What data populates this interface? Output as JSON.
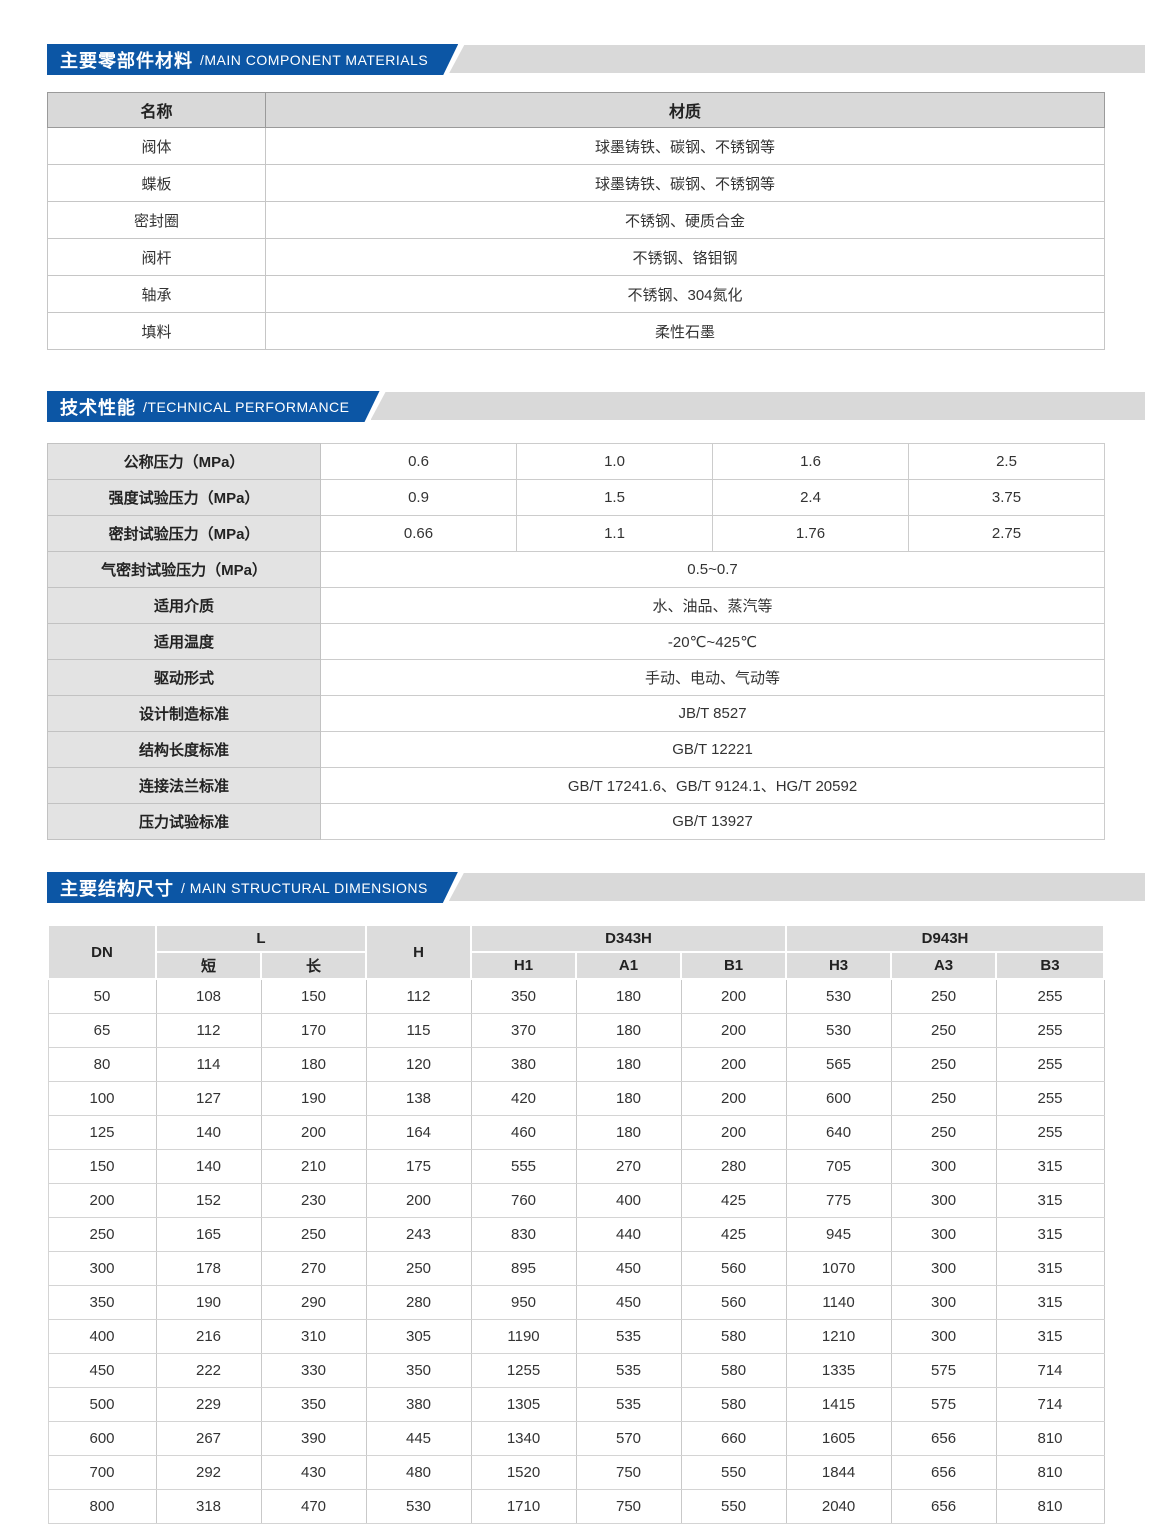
{
  "colors": {
    "accent_blue": "#0c56a5",
    "header_bar_gray": "#d9d9d9",
    "table_header_bg": "#d9d9d9",
    "label_cell_bg": "#e3e3e3",
    "dim_header_bg": "#dcdcdc"
  },
  "materials": {
    "title_zh": "主要零部件材料",
    "title_en": "/MAIN COMPONENT MATERIALS",
    "table": {
      "columns": [
        "名称",
        "材质"
      ],
      "rows": [
        [
          "阀体",
          "球墨铸铁、碳钢、不锈钢等"
        ],
        [
          "蝶板",
          "球墨铸铁、碳钢、不锈钢等"
        ],
        [
          "密封圈",
          "不锈钢、硬质合金"
        ],
        [
          "阀杆",
          "不锈钢、铬钼钢"
        ],
        [
          "轴承",
          "不锈钢、304氮化"
        ],
        [
          "填料",
          "柔性石墨"
        ]
      ]
    }
  },
  "technical": {
    "title_zh": "技术性能",
    "title_en": "/TECHNICAL PERFORMANCE",
    "table": {
      "rows": [
        {
          "label": "公称压力（MPa）",
          "values": [
            "0.6",
            "1.0",
            "1.6",
            "2.5"
          ]
        },
        {
          "label": "强度试验压力（MPa）",
          "values": [
            "0.9",
            "1.5",
            "2.4",
            "3.75"
          ]
        },
        {
          "label": "密封试验压力（MPa）",
          "values": [
            "0.66",
            "1.1",
            "1.76",
            "2.75"
          ]
        },
        {
          "label": "气密封试验压力（MPa）",
          "values": [
            "0.5~0.7"
          ]
        },
        {
          "label": "适用介质",
          "values": [
            "水、油品、蒸汽等"
          ]
        },
        {
          "label": "适用温度",
          "values": [
            "-20℃~425℃"
          ]
        },
        {
          "label": "驱动形式",
          "values": [
            "手动、电动、气动等"
          ]
        },
        {
          "label": "设计制造标准",
          "values": [
            "JB/T 8527"
          ]
        },
        {
          "label": "结构长度标准",
          "values": [
            "GB/T 12221"
          ]
        },
        {
          "label": "连接法兰标准",
          "values": [
            "GB/T 17241.6、GB/T 9124.1、HG/T 20592"
          ]
        },
        {
          "label": "压力试验标准",
          "values": [
            "GB/T 13927"
          ]
        }
      ]
    }
  },
  "dimensions": {
    "title_zh": "主要结构尺寸",
    "title_en": "/ MAIN STRUCTURAL DIMENSIONS",
    "table": {
      "header": {
        "dn": "DN",
        "l_group": "L",
        "l_short": "短",
        "l_long": "长",
        "h": "H",
        "d343h_group": "D343H",
        "d343h_cols": [
          "H1",
          "A1",
          "B1"
        ],
        "d943h_group": "D943H",
        "d943h_cols": [
          "H3",
          "A3",
          "B3"
        ]
      },
      "rows": [
        [
          "50",
          "108",
          "150",
          "112",
          "350",
          "180",
          "200",
          "530",
          "250",
          "255"
        ],
        [
          "65",
          "112",
          "170",
          "115",
          "370",
          "180",
          "200",
          "530",
          "250",
          "255"
        ],
        [
          "80",
          "114",
          "180",
          "120",
          "380",
          "180",
          "200",
          "565",
          "250",
          "255"
        ],
        [
          "100",
          "127",
          "190",
          "138",
          "420",
          "180",
          "200",
          "600",
          "250",
          "255"
        ],
        [
          "125",
          "140",
          "200",
          "164",
          "460",
          "180",
          "200",
          "640",
          "250",
          "255"
        ],
        [
          "150",
          "140",
          "210",
          "175",
          "555",
          "270",
          "280",
          "705",
          "300",
          "315"
        ],
        [
          "200",
          "152",
          "230",
          "200",
          "760",
          "400",
          "425",
          "775",
          "300",
          "315"
        ],
        [
          "250",
          "165",
          "250",
          "243",
          "830",
          "440",
          "425",
          "945",
          "300",
          "315"
        ],
        [
          "300",
          "178",
          "270",
          "250",
          "895",
          "450",
          "560",
          "1070",
          "300",
          "315"
        ],
        [
          "350",
          "190",
          "290",
          "280",
          "950",
          "450",
          "560",
          "1140",
          "300",
          "315"
        ],
        [
          "400",
          "216",
          "310",
          "305",
          "1190",
          "535",
          "580",
          "1210",
          "300",
          "315"
        ],
        [
          "450",
          "222",
          "330",
          "350",
          "1255",
          "535",
          "580",
          "1335",
          "575",
          "714"
        ],
        [
          "500",
          "229",
          "350",
          "380",
          "1305",
          "535",
          "580",
          "1415",
          "575",
          "714"
        ],
        [
          "600",
          "267",
          "390",
          "445",
          "1340",
          "570",
          "660",
          "1605",
          "656",
          "810"
        ],
        [
          "700",
          "292",
          "430",
          "480",
          "1520",
          "750",
          "550",
          "1844",
          "656",
          "810"
        ],
        [
          "800",
          "318",
          "470",
          "530",
          "1710",
          "750",
          "550",
          "2040",
          "656",
          "810"
        ]
      ]
    }
  }
}
